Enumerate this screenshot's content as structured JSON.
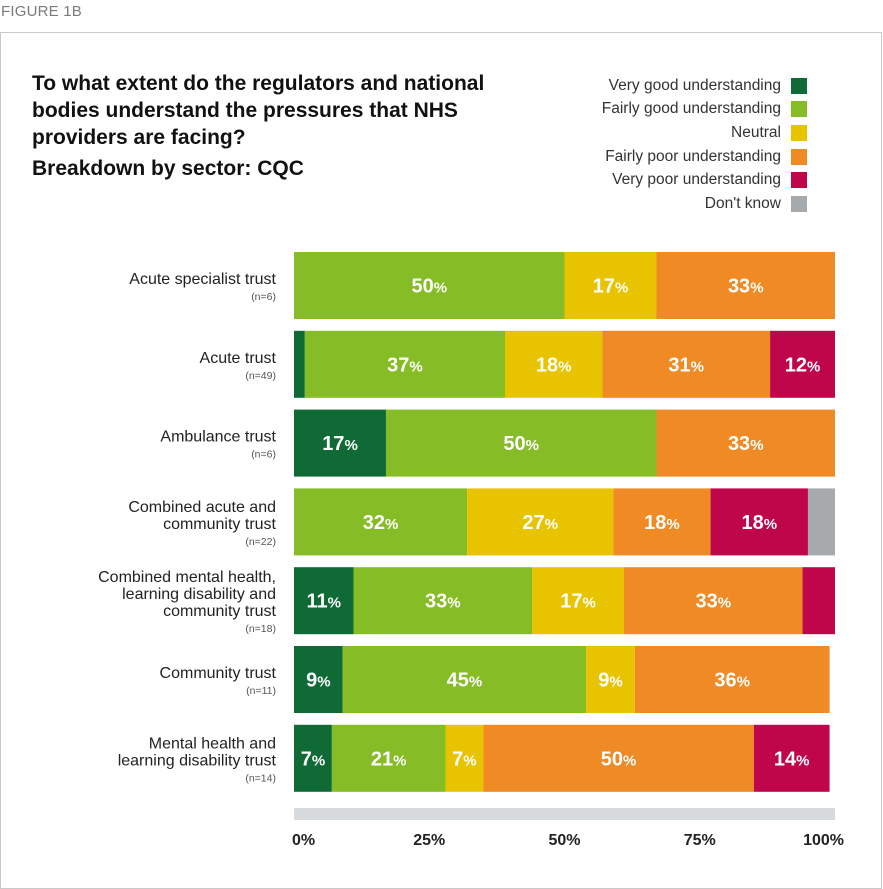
{
  "figure_label": "FIGURE 1B",
  "chart_data": {
    "type": "bar",
    "orientation": "horizontal",
    "stacked": true,
    "title": "To what extent do the regulators and national bodies understand the pressures that NHS providers are facing?",
    "subtitle": "Breakdown by sector: CQC",
    "xlim": [
      0,
      100
    ],
    "x_ticks": [
      "0%",
      "25%",
      "50%",
      "75%",
      "100%"
    ],
    "legend_position": "top-right",
    "series": [
      {
        "name": "Very good understanding",
        "color": "#0f6a35"
      },
      {
        "name": "Fairly good understanding",
        "color": "#86bc25"
      },
      {
        "name": "Neutral",
        "color": "#e8c300"
      },
      {
        "name": "Fairly poor understanding",
        "color": "#f08a24"
      },
      {
        "name": "Very poor understanding",
        "color": "#c0064a"
      },
      {
        "name": "Don't know",
        "color": "#a7aaad"
      }
    ],
    "categories": [
      {
        "label_lines": [
          "Acute specialist trust"
        ],
        "n": "(n=6)",
        "values": [
          0,
          50,
          17,
          33,
          0,
          0
        ],
        "labels": [
          "",
          "50",
          "17",
          "33",
          "",
          ""
        ]
      },
      {
        "label_lines": [
          "Acute trust"
        ],
        "n": "(n=49)",
        "values": [
          2,
          37,
          18,
          31,
          12,
          0
        ],
        "labels": [
          "",
          "37",
          "18",
          "31",
          "12",
          ""
        ]
      },
      {
        "label_lines": [
          "Ambulance trust"
        ],
        "n": "(n=6)",
        "values": [
          17,
          50,
          0,
          33,
          0,
          0
        ],
        "labels": [
          "17",
          "50",
          "",
          "33",
          "",
          ""
        ]
      },
      {
        "label_lines": [
          "Combined acute and",
          "community trust"
        ],
        "n": "(n=22)",
        "values": [
          0,
          32,
          27,
          18,
          18,
          5
        ],
        "labels": [
          "",
          "32",
          "27",
          "18",
          "18",
          ""
        ]
      },
      {
        "label_lines": [
          "Combined mental health,",
          "learning disability and",
          "community trust"
        ],
        "n": "(n=18)",
        "values": [
          11,
          33,
          17,
          33,
          6,
          0
        ],
        "labels": [
          "11",
          "33",
          "17",
          "33",
          "",
          ""
        ]
      },
      {
        "label_lines": [
          "Community trust"
        ],
        "n": "(n=11)",
        "values": [
          9,
          45,
          9,
          36,
          0,
          0
        ],
        "labels": [
          "9",
          "45",
          "9",
          "36",
          "",
          ""
        ]
      },
      {
        "label_lines": [
          "Mental health and",
          "learning disability trust"
        ],
        "n": "(n=14)",
        "values": [
          7,
          21,
          7,
          50,
          14,
          0
        ],
        "labels": [
          "7",
          "21",
          "7",
          "50",
          "14",
          ""
        ]
      }
    ]
  }
}
